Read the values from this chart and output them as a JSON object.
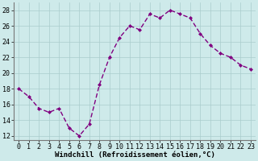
{
  "x": [
    0,
    1,
    2,
    3,
    4,
    5,
    6,
    7,
    8,
    9,
    10,
    11,
    12,
    13,
    14,
    15,
    16,
    17,
    18,
    19,
    20,
    21,
    22,
    23
  ],
  "y": [
    18.0,
    17.0,
    15.5,
    15.0,
    15.5,
    13.0,
    12.0,
    13.5,
    18.5,
    22.0,
    24.5,
    26.0,
    25.5,
    27.5,
    27.0,
    28.0,
    27.5,
    27.0,
    25.0,
    23.5,
    22.5,
    22.0,
    21.0,
    20.5
  ],
  "line_color": "#800080",
  "marker": "D",
  "marker_size": 2.0,
  "bg_color": "#ceeaea",
  "grid_color": "#aacccc",
  "xlabel": "Windchill (Refroidissement éolien,°C)",
  "ylim": [
    11.5,
    29.0
  ],
  "xlim": [
    -0.5,
    23.5
  ],
  "yticks": [
    12,
    14,
    16,
    18,
    20,
    22,
    24,
    26,
    28
  ],
  "xticks": [
    0,
    1,
    2,
    3,
    4,
    5,
    6,
    7,
    8,
    9,
    10,
    11,
    12,
    13,
    14,
    15,
    16,
    17,
    18,
    19,
    20,
    21,
    22,
    23
  ],
  "xlabel_fontsize": 6.5,
  "tick_fontsize": 6.0,
  "line_width": 1.0
}
